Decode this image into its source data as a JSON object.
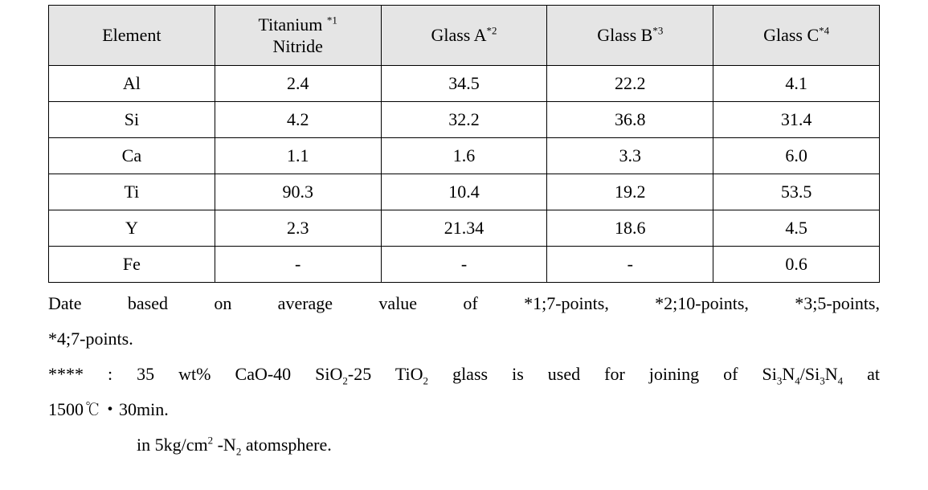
{
  "table": {
    "header_bg": "#e5e5e5",
    "border_color": "#000000",
    "columns": [
      {
        "label": "Element",
        "sup": ""
      },
      {
        "label": "Titanium\nNitride",
        "sup": "*1"
      },
      {
        "label": "Glass A",
        "sup": "*2"
      },
      {
        "label": "Glass B",
        "sup": "*3"
      },
      {
        "label": "Glass C",
        "sup": "*4"
      }
    ],
    "rows": [
      [
        "Al",
        "2.4",
        "34.5",
        "22.2",
        "4.1"
      ],
      [
        "Si",
        "4.2",
        "32.2",
        "36.8",
        "31.4"
      ],
      [
        "Ca",
        "1.1",
        "1.6",
        "3.3",
        "6.0"
      ],
      [
        "Ti",
        "90.3",
        "10.4",
        "19.2",
        "53.5"
      ],
      [
        "Y",
        "2.3",
        "21.34",
        "18.6",
        "4.5"
      ],
      [
        "Fe",
        "-",
        "-",
        "-",
        "0.6"
      ]
    ]
  },
  "notes": {
    "line1a": "Date based on average value of *1;7-points, *2;10-points, *3;5-points,",
    "line1b": "*4;7-points.",
    "line2a_prefix": "**** : 35 wt% CaO-40 SiO",
    "line2a_sub1": "2",
    "line2a_mid1": "-25 TiO",
    "line2a_sub2": "2",
    "line2a_mid2": " glass is used for joining of Si",
    "line2a_sub3": "3",
    "line2a_mid3": "N",
    "line2a_sub4": "4",
    "line2a_mid4": "/Si",
    "line2a_sub5": "3",
    "line2a_mid5": "N",
    "line2a_sub6": "4",
    "line2a_mid6": " at",
    "line2b": "1500℃・30min.",
    "line3_prefix": "in 5kg/cm",
    "line3_sup": "2",
    "line3_mid": " -N",
    "line3_sub": "2",
    "line3_suffix": " atomsphere."
  }
}
